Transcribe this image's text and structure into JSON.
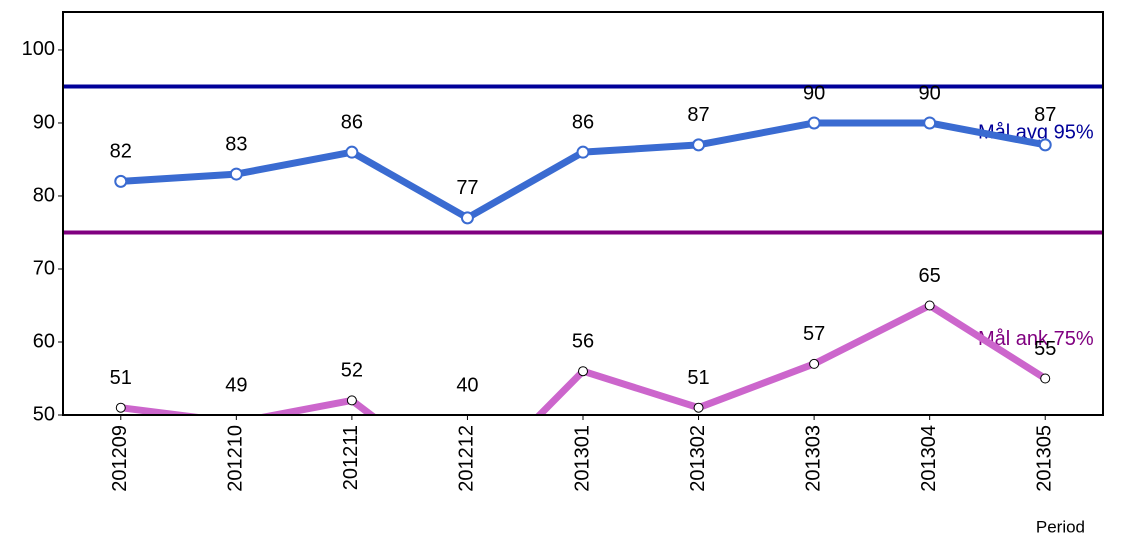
{
  "chart_data": {
    "type": "line",
    "categories": [
      "201209",
      "201210",
      "201211",
      "201212",
      "201301",
      "201302",
      "201303",
      "201304",
      "201305"
    ],
    "series": [
      {
        "color": "#3a6bd1",
        "marker_fill": "#ffffff",
        "marker_stroke": "#3a6bd1",
        "values": [
          82,
          83,
          86,
          77,
          86,
          87,
          90,
          90,
          87
        ]
      },
      {
        "color": "#cc66cc",
        "marker_fill": "#ffffff",
        "marker_stroke": "#000000",
        "values": [
          51,
          49,
          52,
          40,
          56,
          51,
          57,
          65,
          55
        ]
      }
    ],
    "reference_lines": [
      {
        "value": 95,
        "label": "Mål avg 95%",
        "color": "#000099"
      },
      {
        "value": 75,
        "label": "Mål ank 75%",
        "color": "#800080"
      }
    ],
    "x_label": "Period",
    "ylim": [
      50,
      105.2
    ],
    "yticks": [
      50,
      60,
      70,
      80,
      90,
      100
    ]
  }
}
